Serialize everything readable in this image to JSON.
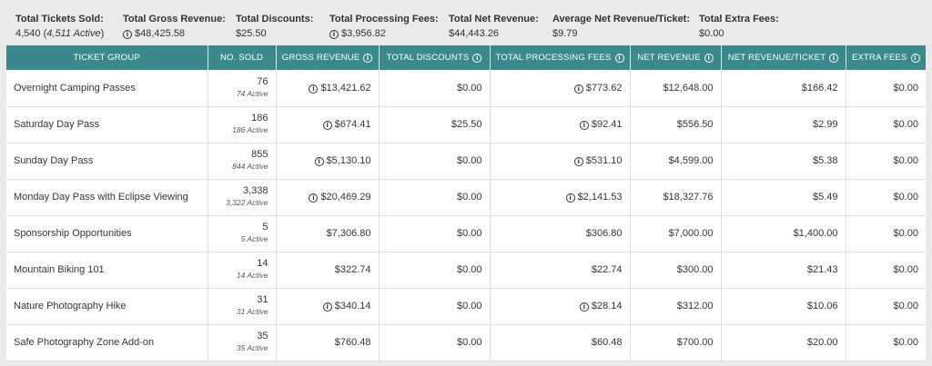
{
  "summary": [
    {
      "label": "Total Tickets Sold:",
      "value": "4,540",
      "extra": "4,511 Active",
      "info": false
    },
    {
      "label": "Total Gross Revenue:",
      "value": "$48,425.58",
      "info": true
    },
    {
      "label": "Total Discounts:",
      "value": "$25.50",
      "info": false
    },
    {
      "label": "Total Processing Fees:",
      "value": "$3,956.82",
      "info": true
    },
    {
      "label": "Total Net Revenue:",
      "value": "$44,443.26",
      "info": false
    },
    {
      "label": "Average Net Revenue/Ticket:",
      "value": "$9.79",
      "info": false
    },
    {
      "label": "Total Extra Fees:",
      "value": "$0.00",
      "info": false
    }
  ],
  "columns": [
    {
      "label": "TICKET GROUP",
      "info": false
    },
    {
      "label": "NO. SOLD",
      "info": false
    },
    {
      "label": "GROSS REVENUE",
      "info": true
    },
    {
      "label": "TOTAL DISCOUNTS",
      "info": true
    },
    {
      "label": "TOTAL PROCESSING FEES",
      "info": true
    },
    {
      "label": "NET REVENUE",
      "info": true
    },
    {
      "label": "NET REVENUE/TICKET",
      "info": true
    },
    {
      "label": "EXTRA FEES",
      "info": true
    }
  ],
  "rows": [
    {
      "group": "Overnight Camping Passes",
      "sold": "76",
      "active": "74 Active",
      "gross": "$13,421.62",
      "gross_info": true,
      "discounts": "$0.00",
      "fees": "$773.62",
      "fees_info": true,
      "net": "$12,648.00",
      "per_ticket": "$166.42",
      "extra": "$0.00"
    },
    {
      "group": "Saturday Day Pass",
      "sold": "186",
      "active": "186 Active",
      "gross": "$674.41",
      "gross_info": true,
      "discounts": "$25.50",
      "fees": "$92.41",
      "fees_info": true,
      "net": "$556.50",
      "per_ticket": "$2.99",
      "extra": "$0.00"
    },
    {
      "group": "Sunday Day Pass",
      "sold": "855",
      "active": "844 Active",
      "gross": "$5,130.10",
      "gross_info": true,
      "discounts": "$0.00",
      "fees": "$531.10",
      "fees_info": true,
      "net": "$4,599.00",
      "per_ticket": "$5.38",
      "extra": "$0.00"
    },
    {
      "group": "Monday Day Pass with Eclipse Viewing",
      "sold": "3,338",
      "active": "3,322 Active",
      "gross": "$20,469.29",
      "gross_info": true,
      "discounts": "$0.00",
      "fees": "$2,141.53",
      "fees_info": true,
      "net": "$18,327.76",
      "per_ticket": "$5.49",
      "extra": "$0.00"
    },
    {
      "group": "Sponsorship Opportunities",
      "sold": "5",
      "active": "5 Active",
      "gross": "$7,306.80",
      "gross_info": false,
      "discounts": "$0.00",
      "fees": "$306.80",
      "fees_info": false,
      "net": "$7,000.00",
      "per_ticket": "$1,400.00",
      "extra": "$0.00"
    },
    {
      "group": "Mountain Biking 101",
      "sold": "14",
      "active": "14 Active",
      "gross": "$322.74",
      "gross_info": false,
      "discounts": "$0.00",
      "fees": "$22.74",
      "fees_info": false,
      "net": "$300.00",
      "per_ticket": "$21.43",
      "extra": "$0.00"
    },
    {
      "group": "Nature Photography Hike",
      "sold": "31",
      "active": "31 Active",
      "gross": "$340.14",
      "gross_info": true,
      "discounts": "$0.00",
      "fees": "$28.14",
      "fees_info": true,
      "net": "$312.00",
      "per_ticket": "$10.06",
      "extra": "$0.00"
    },
    {
      "group": "Safe Photography Zone Add-on",
      "sold": "35",
      "active": "35 Active",
      "gross": "$760.48",
      "gross_info": false,
      "discounts": "$0.00",
      "fees": "$60.48",
      "fees_info": false,
      "net": "$700.00",
      "per_ticket": "$20.00",
      "extra": "$0.00"
    }
  ],
  "info_glyph": "i"
}
